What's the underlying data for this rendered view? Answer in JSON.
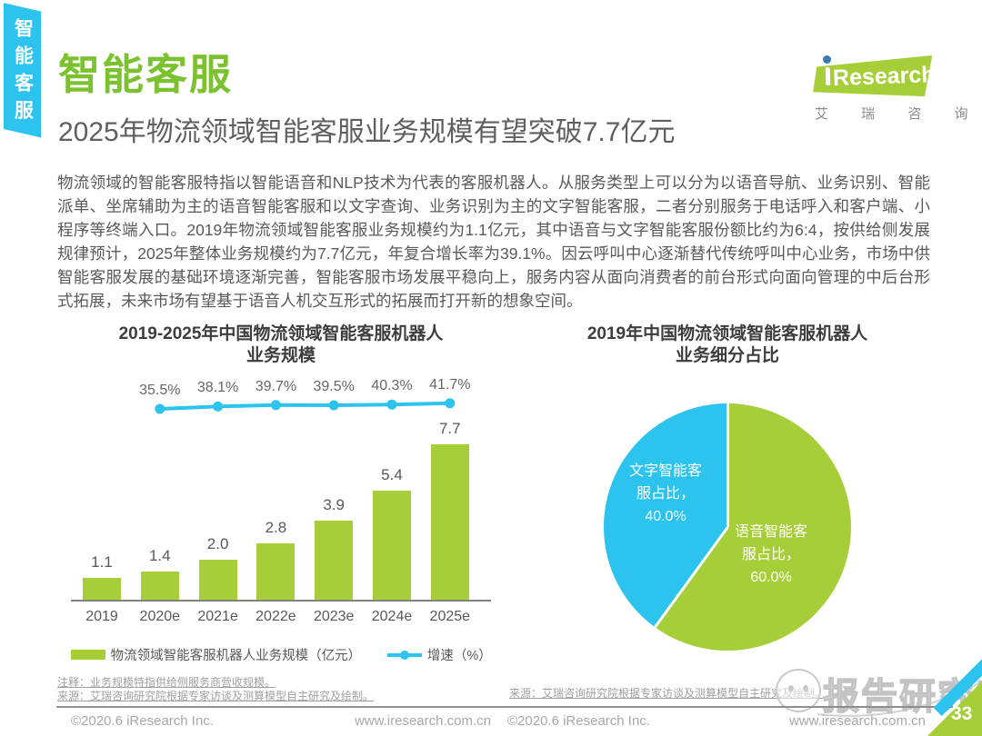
{
  "side_tab": {
    "label": "智能客服"
  },
  "header": {
    "section_title": "智能客服",
    "headline": "2025年物流领域智能客服业务规模有望突破7.7亿元"
  },
  "logo": {
    "rest": "Research",
    "chinese": "艾 瑞 咨 询"
  },
  "body": {
    "paragraph": "物流领域的智能客服特指以智能语音和NLP技术为代表的客服机器人。从服务类型上可以分为以语音导航、业务识别、智能派单、坐席辅助为主的语音智能客服和以文字查询、业务识别为主的文字智能客服，二者分别服务于电话呼入和客户端、小程序等终端入口。2019年物流领域智能客服业务规模约为1.1亿元，其中语音与文字智能客服份额比约为6:4，按供给侧发展规律预计，2025年整体业务规模约为7.7亿元，年复合增长率为39.1%。因云呼叫中心逐渐替代传统呼叫中心业务，市场中供智能客服发展的基础环境逐渐完善，智能客服市场发展平稳向上，服务内容从面向消费者的前台形式向面向管理的中后台形式拓展，未来市场有望基于语音人机交互形式的拓展而打开新的想象空间。"
  },
  "left_chart": {
    "title_line1": "2019-2025年中国物流领域智能客服机器人",
    "title_line2": "业务规模"
  },
  "right_chart": {
    "title_line1": "2019年中国物流领域智能客服机器人",
    "title_line2": "业务细分占比"
  },
  "chart_data": [
    {
      "type": "bar",
      "title": "2019-2025年中国物流领域智能客服机器人业务规模",
      "categories": [
        "2019",
        "2020e",
        "2021e",
        "2022e",
        "2023e",
        "2024e",
        "2025e"
      ],
      "series": [
        {
          "name": "物流领域智能客服机器人业务规模（亿元）",
          "type": "bar",
          "color": "#a6ce39",
          "values": [
            1.1,
            1.4,
            2.0,
            2.8,
            3.9,
            5.4,
            7.7
          ]
        },
        {
          "name": "增速（%）",
          "type": "line",
          "color": "#2cc3ee",
          "values": [
            null,
            35.5,
            38.1,
            39.7,
            39.5,
            40.3,
            41.7
          ]
        }
      ],
      "ylim": [
        0,
        8.5
      ],
      "grid": false,
      "legend_position": "bottom"
    },
    {
      "type": "pie",
      "title": "2019年中国物流领域智能客服机器人业务细分占比",
      "start_angle_deg": 0,
      "direction": "clockwise",
      "slices": [
        {
          "label": "语音智能客服占比",
          "value": 60.0,
          "color": "#a6ce39"
        },
        {
          "label": "文字智能客服占比",
          "value": 40.0,
          "color": "#2cc3ee"
        }
      ]
    }
  ],
  "notes": {
    "note": "注释：业务规模特指供给侧服务商营收规模。",
    "source_left": "来源：艾瑞咨询研究院根据专家访谈及测算模型自主研究及绘制。",
    "source_right": "来源：艾瑞咨询研究院根据专家访谈及测算模型自主研究及绘制。"
  },
  "watermark": {
    "text": "报告研究所"
  },
  "footer": {
    "copyright": "©2020.6 iResearch Inc.",
    "website": "www.iresearch.com.cn",
    "page_number": "33"
  },
  "colors": {
    "accent_cyan": "#2cc3ee",
    "accent_lime": "#a6ce39",
    "title_green": "#7cc12f"
  }
}
